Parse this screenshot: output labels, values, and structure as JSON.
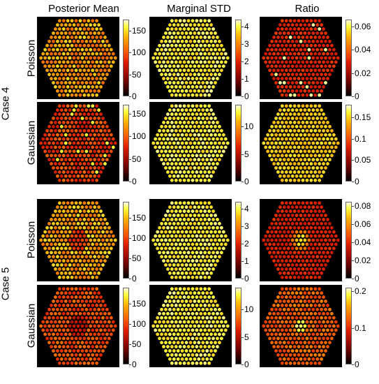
{
  "column_titles": [
    "Posterior Mean",
    "Marginal STD",
    "Ratio"
  ],
  "case_labels": [
    "Case 4",
    "Case 5"
  ],
  "row_labels": [
    "Poisson",
    "Gaussian"
  ],
  "panels": [
    {
      "case": "Case 4",
      "noise": "Poisson",
      "metric": "Posterior Mean",
      "style": "mean4p",
      "colorbar": {
        "ticks": [
          "0",
          "50",
          "100",
          "150"
        ],
        "values": [
          0,
          50,
          100,
          150
        ],
        "max": 175
      }
    },
    {
      "case": "Case 4",
      "noise": "Poisson",
      "metric": "Marginal STD",
      "style": "std",
      "colorbar": {
        "ticks": [
          "0",
          "1",
          "2",
          "3",
          "4"
        ],
        "values": [
          0,
          1,
          2,
          3,
          4
        ],
        "max": 4.4
      }
    },
    {
      "case": "Case 4",
      "noise": "Poisson",
      "metric": "Ratio",
      "style": "ratio4p",
      "colorbar": {
        "ticks": [
          "0",
          "0.02",
          "0.04",
          "0.06"
        ],
        "values": [
          0,
          0.02,
          0.04,
          0.06
        ],
        "max": 0.066
      }
    },
    {
      "case": "Case 4",
      "noise": "Gaussian",
      "metric": "Posterior Mean",
      "style": "mean4g",
      "colorbar": {
        "ticks": [
          "0",
          "50",
          "100",
          "150"
        ],
        "values": [
          0,
          50,
          100,
          150
        ],
        "max": 170
      }
    },
    {
      "case": "Case 4",
      "noise": "Gaussian",
      "metric": "Marginal STD",
      "style": "std",
      "colorbar": {
        "ticks": [
          "0",
          "5",
          "10"
        ],
        "values": [
          0,
          5,
          10
        ],
        "max": 14
      }
    },
    {
      "case": "Case 4",
      "noise": "Gaussian",
      "metric": "Ratio",
      "style": "ratio4g",
      "colorbar": {
        "ticks": [
          "0",
          "0.05",
          "0.1",
          "0.15"
        ],
        "values": [
          0,
          0.05,
          0.1,
          0.15
        ],
        "max": 0.18
      }
    },
    {
      "case": "Case 5",
      "noise": "Poisson",
      "metric": "Posterior Mean",
      "style": "mean5p",
      "colorbar": {
        "ticks": [
          "0",
          "50",
          "100",
          "150"
        ],
        "values": [
          0,
          50,
          100,
          150
        ],
        "max": 190
      }
    },
    {
      "case": "Case 5",
      "noise": "Poisson",
      "metric": "Marginal STD",
      "style": "std",
      "colorbar": {
        "ticks": [
          "0",
          "1",
          "2",
          "3",
          "4"
        ],
        "values": [
          0,
          1,
          2,
          3,
          4
        ],
        "max": 4.4
      }
    },
    {
      "case": "Case 5",
      "noise": "Poisson",
      "metric": "Ratio",
      "style": "ratio5p",
      "colorbar": {
        "ticks": [
          "0",
          "0.02",
          "0.04",
          "0.06",
          "0.08"
        ],
        "values": [
          0,
          0.02,
          0.04,
          0.06,
          0.08
        ],
        "max": 0.085
      }
    },
    {
      "case": "Case 5",
      "noise": "Gaussian",
      "metric": "Posterior Mean",
      "style": "mean5g",
      "colorbar": {
        "ticks": [
          "0",
          "50",
          "100",
          "150"
        ],
        "values": [
          0,
          50,
          100,
          150
        ],
        "max": 190
      }
    },
    {
      "case": "Case 5",
      "noise": "Gaussian",
      "metric": "Marginal STD",
      "style": "std",
      "colorbar": {
        "ticks": [
          "0",
          "5",
          "10"
        ],
        "values": [
          0,
          5,
          10
        ],
        "max": 14
      }
    },
    {
      "case": "Case 5",
      "noise": "Gaussian",
      "metric": "Ratio",
      "style": "ratio5g",
      "colorbar": {
        "ticks": [
          "0",
          "0.1",
          "0.2"
        ],
        "values": [
          0,
          0.1,
          0.2
        ],
        "max": 0.21
      }
    }
  ]
}
